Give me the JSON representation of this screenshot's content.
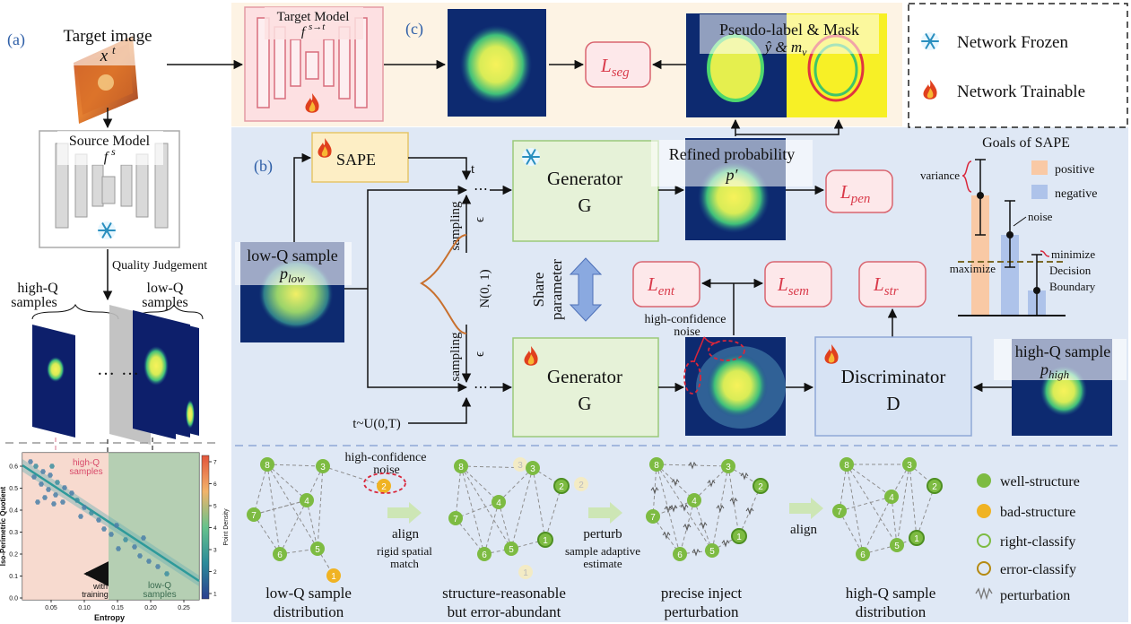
{
  "panel_a": {
    "label": "(a)",
    "target_image": "Target image",
    "target_sym": "x",
    "target_sup": "t",
    "source_model": "Source Model",
    "source_sym": "f",
    "source_sup": "s",
    "quality": "Quality Judgement",
    "high_q_1": "high-Q",
    "high_q_2": "samples",
    "low_q_1": "low-Q",
    "low_q_2": "samples",
    "dots": "…",
    "dots2": "…",
    "plot": {
      "ylabel": "Iso-Perimetric Quotient",
      "xlabel": "Entropy",
      "cbar_label": "Point Density",
      "xticks": [
        "0.05",
        "0.10",
        "0.15",
        "0.20",
        "0.25"
      ],
      "yticks": [
        "0.0",
        "0.1",
        "0.2",
        "0.3",
        "0.4",
        "0.5",
        "0.6"
      ],
      "cbar_ticks": [
        "1",
        "2",
        "3",
        "4",
        "5",
        "6",
        "7"
      ],
      "hq_1": "high-Q",
      "hq_2": "samples",
      "lq_1": "low-Q",
      "lq_2": "samples",
      "with_1": "with",
      "with_2": "training"
    }
  },
  "panel_c": {
    "label": "(c)",
    "target_model": "Target Model",
    "target_model_sym": "f",
    "target_model_sup": "s→t",
    "l_seg": "L",
    "l_seg_sub": "seg",
    "pseudo": "Pseudo-label & Mask",
    "pseudo_sym": "ŷ & m",
    "pseudo_sub": "v"
  },
  "legend_top": {
    "frozen": "Network Frozen",
    "trainable": "Network Trainable"
  },
  "panel_b": {
    "label": "(b)",
    "sape": "SAPE",
    "t_label": "t",
    "generator": "Generator",
    "g": "G",
    "refined": "Refined probability",
    "p_prime": "p′",
    "l_pen": "L",
    "l_pen_sub": "pen",
    "low_q": "low-Q sample",
    "p_low": "p",
    "p_low_sub": "low",
    "sampling": "sampling",
    "epsilon": "ϵ",
    "normal": "N(0, 1)",
    "share_1": "Share",
    "share_2": "parameter",
    "l_ent": "L",
    "l_ent_sub": "ent",
    "l_sem": "L",
    "l_sem_sub": "sem",
    "l_str": "L",
    "l_str_sub": "str",
    "hc_noise_1": "high-confidence",
    "hc_noise_2": "noise",
    "discriminator": "Discriminator",
    "d": "D",
    "high_q": "high-Q sample",
    "p_high": "p",
    "p_high_sub": "high",
    "t_uniform": "t~U(0,T)"
  },
  "goals": {
    "title": "Goals of  SAPE",
    "positive": "positive",
    "negative": "negative",
    "variance": "variance",
    "noise": "noise",
    "maximize": "maximize",
    "minimize": "minimize",
    "decision": "Decision",
    "boundary": "Boundary"
  },
  "bottom": {
    "hc_noise_1": "high-confidence",
    "hc_noise_2": "noise",
    "align": "align",
    "rigid_1": "rigid spatial",
    "rigid_2": "match",
    "perturb": "perturb",
    "sae_1": "sample adaptive",
    "sae_2": "estimate",
    "align2": "align",
    "cap1_1": "low-Q sample",
    "cap1_2": "distribution",
    "cap2_1": "structure-reasonable",
    "cap2_2": "but error-abundant",
    "cap3_1": "precise inject",
    "cap3_2": "perturbation",
    "cap4_1": "high-Q sample",
    "cap4_2": "distribution",
    "legend": {
      "well": "well-structure",
      "bad": "bad-structure",
      "right": "right-classify",
      "error": "error-classify",
      "perturbation": "perturbation"
    },
    "nodes": [
      "1",
      "2",
      "3",
      "4",
      "5",
      "6",
      "7",
      "8"
    ]
  },
  "colors": {
    "node_green": "#7dbb42",
    "node_orange": "#f0b323",
    "panel_b_bg": "#dfe8f5",
    "panel_c_bg": "#fdf3e4",
    "loss_fill": "#fde8ea",
    "loss_stroke": "#d9646f",
    "gen_fill": "#e6f2d8",
    "disc_fill": "#d7e3f4",
    "sape_fill": "#fdeec5"
  }
}
